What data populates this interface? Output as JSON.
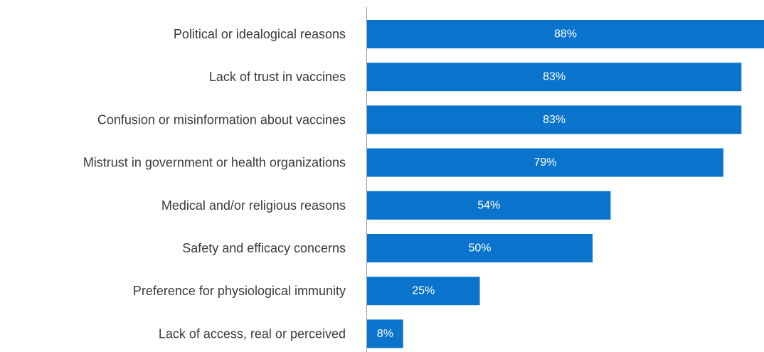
{
  "chart_data": {
    "type": "bar",
    "orientation": "horizontal",
    "categories": [
      "Political or idealogical reasons",
      "Lack of trust in vaccines",
      "Confusion or misinformation about vaccines",
      "Mistrust in government or health organizations",
      "Medical and/or religious reasons",
      "Safety and efficacy concerns",
      "Preference for physiological immunity",
      "Lack of access, real or perceived"
    ],
    "values": [
      88,
      83,
      83,
      79,
      54,
      50,
      25,
      8
    ],
    "value_labels": [
      "88%",
      "83%",
      "83%",
      "79%",
      "54%",
      "50%",
      "25%",
      "8%"
    ],
    "unit": "%",
    "xlim": [
      0,
      88
    ],
    "bar_color": "#0a74cc",
    "grid": false,
    "legend": "none"
  }
}
